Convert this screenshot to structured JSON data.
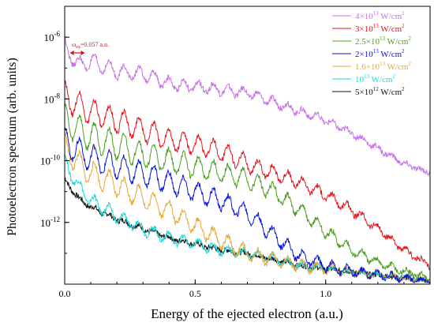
{
  "chart_data": {
    "type": "line",
    "title": "",
    "xlabel": "Energy of the ejected electron (a.u.)",
    "ylabel": "Photoelectron spectrum (arb. units)",
    "xlim": [
      0,
      1.4
    ],
    "ylim": [
      1e-14,
      1e-05
    ],
    "yscale": "log",
    "xticks": [
      0.0,
      0.5,
      1.0
    ],
    "xtick_labels": [
      "0.0",
      "0.5",
      "1.0"
    ],
    "yticks": [
      1e-06,
      1e-08,
      1e-10,
      1e-12
    ],
    "ytick_labels": [
      {
        "base": "10",
        "exp": "-6"
      },
      {
        "base": "10",
        "exp": "-8"
      },
      {
        "base": "10",
        "exp": "-10"
      },
      {
        "base": "10",
        "exp": "-12"
      }
    ],
    "legend_position": "top-right",
    "annotation": {
      "text": "ω",
      "subscript": "ex",
      "suffix": "=0.057 a.u.",
      "spacing": 0.057,
      "color": "#e01010"
    },
    "series": [
      {
        "name": {
          "pre": "4×10",
          "exp": "13",
          "post": " W/cm",
          "exp2": "2"
        },
        "color": "#c872e8",
        "omega": 0.057,
        "decades": [
          [
            0.0,
            -6.3
          ],
          [
            0.05,
            -6.9
          ],
          [
            0.1,
            -6.8
          ],
          [
            0.2,
            -7.1
          ],
          [
            0.3,
            -7.2
          ],
          [
            0.4,
            -7.5
          ],
          [
            0.5,
            -7.6
          ],
          [
            0.6,
            -7.7
          ],
          [
            0.7,
            -7.8
          ],
          [
            0.8,
            -8.1
          ],
          [
            0.9,
            -8.4
          ],
          [
            1.0,
            -8.7
          ],
          [
            1.1,
            -9.1
          ],
          [
            1.2,
            -9.6
          ],
          [
            1.3,
            -10.1
          ],
          [
            1.4,
            -10.4
          ]
        ],
        "amp": 0.5
      },
      {
        "name": {
          "pre": "3×10",
          "exp": "13",
          "post": " W/cm",
          "exp2": "2"
        },
        "color": "#e8141a",
        "omega": 0.057,
        "decades": [
          [
            0.0,
            -7.9
          ],
          [
            0.05,
            -8.2
          ],
          [
            0.1,
            -8.4
          ],
          [
            0.2,
            -8.7
          ],
          [
            0.3,
            -9.0
          ],
          [
            0.4,
            -9.3
          ],
          [
            0.5,
            -9.5
          ],
          [
            0.6,
            -9.7
          ],
          [
            0.7,
            -10.1
          ],
          [
            0.8,
            -10.4
          ],
          [
            0.9,
            -10.7
          ],
          [
            1.0,
            -11.1
          ],
          [
            1.1,
            -11.6
          ],
          [
            1.2,
            -12.2
          ],
          [
            1.3,
            -12.9
          ],
          [
            1.4,
            -13.4
          ]
        ],
        "amp": 0.9
      },
      {
        "name": {
          "pre": "2.5×10",
          "exp": "13",
          "post": " W/cm",
          "exp2": "2"
        },
        "color": "#4aa020",
        "omega": 0.057,
        "decades": [
          [
            0.0,
            -8.6
          ],
          [
            0.05,
            -9.0
          ],
          [
            0.1,
            -9.2
          ],
          [
            0.2,
            -9.5
          ],
          [
            0.3,
            -9.8
          ],
          [
            0.4,
            -10.0
          ],
          [
            0.5,
            -10.2
          ],
          [
            0.6,
            -10.4
          ],
          [
            0.7,
            -10.6
          ],
          [
            0.8,
            -11.0
          ],
          [
            0.9,
            -11.6
          ],
          [
            1.0,
            -12.3
          ],
          [
            1.1,
            -12.9
          ],
          [
            1.2,
            -13.3
          ],
          [
            1.3,
            -13.6
          ],
          [
            1.4,
            -13.8
          ]
        ],
        "amp": 1.0
      },
      {
        "name": {
          "pre": "2×10",
          "exp": "13",
          "post": " W/cm",
          "exp2": "2"
        },
        "color": "#0a16d8",
        "omega": 0.057,
        "decades": [
          [
            0.0,
            -9.3
          ],
          [
            0.05,
            -9.7
          ],
          [
            0.1,
            -9.9
          ],
          [
            0.2,
            -10.2
          ],
          [
            0.3,
            -10.4
          ],
          [
            0.4,
            -10.7
          ],
          [
            0.5,
            -11.0
          ],
          [
            0.6,
            -11.3
          ],
          [
            0.7,
            -11.7
          ],
          [
            0.8,
            -12.4
          ],
          [
            0.9,
            -13.1
          ],
          [
            1.0,
            -13.4
          ],
          [
            1.1,
            -13.6
          ],
          [
            1.2,
            -13.7
          ],
          [
            1.3,
            -13.8
          ],
          [
            1.4,
            -13.9
          ]
        ],
        "amp": 0.9
      },
      {
        "name": {
          "pre": "1.6×10",
          "exp": "13",
          "post": " W/cm",
          "exp2": "2"
        },
        "color": "#e8a838",
        "omega": 0.057,
        "decades": [
          [
            0.0,
            -9.5
          ],
          [
            0.05,
            -10.1
          ],
          [
            0.1,
            -10.4
          ],
          [
            0.2,
            -10.8
          ],
          [
            0.3,
            -11.2
          ],
          [
            0.4,
            -11.6
          ],
          [
            0.5,
            -12.1
          ],
          [
            0.6,
            -12.6
          ],
          [
            0.7,
            -13.0
          ],
          [
            0.8,
            -13.2
          ],
          [
            0.9,
            -13.4
          ],
          [
            1.0,
            -13.5
          ],
          [
            1.1,
            -13.6
          ],
          [
            1.2,
            -13.7
          ],
          [
            1.3,
            -13.8
          ],
          [
            1.4,
            -13.9
          ]
        ],
        "amp": 0.8
      },
      {
        "name": {
          "pre": "10",
          "exp": "13",
          "post": " W/cm",
          "exp2": "2"
        },
        "color": "#18d8d8",
        "omega": 0.057,
        "decades": [
          [
            0.0,
            -10.0
          ],
          [
            0.05,
            -10.8
          ],
          [
            0.1,
            -11.3
          ],
          [
            0.2,
            -11.8
          ],
          [
            0.3,
            -12.2
          ],
          [
            0.4,
            -12.5
          ],
          [
            0.5,
            -12.7
          ],
          [
            0.6,
            -12.9
          ],
          [
            0.7,
            -13.0
          ],
          [
            0.8,
            -13.2
          ],
          [
            0.9,
            -13.4
          ],
          [
            1.0,
            -13.5
          ],
          [
            1.1,
            -13.6
          ],
          [
            1.2,
            -13.7
          ],
          [
            1.3,
            -13.8
          ],
          [
            1.4,
            -13.9
          ]
        ],
        "amp": 0.45
      },
      {
        "name": {
          "pre": "5×10",
          "exp": "12",
          "post": " W/cm",
          "exp2": "2"
        },
        "color": "#111111",
        "omega": 0.057,
        "decades": [
          [
            0.0,
            -10.6
          ],
          [
            0.05,
            -11.2
          ],
          [
            0.1,
            -11.5
          ],
          [
            0.2,
            -11.9
          ],
          [
            0.3,
            -12.2
          ],
          [
            0.4,
            -12.5
          ],
          [
            0.5,
            -12.7
          ],
          [
            0.6,
            -12.9
          ],
          [
            0.7,
            -13.0
          ],
          [
            0.8,
            -13.2
          ],
          [
            0.9,
            -13.4
          ],
          [
            1.0,
            -13.5
          ],
          [
            1.1,
            -13.6
          ],
          [
            1.2,
            -13.7
          ],
          [
            1.3,
            -13.8
          ],
          [
            1.4,
            -13.9
          ]
        ],
        "amp": 0.12
      }
    ]
  }
}
